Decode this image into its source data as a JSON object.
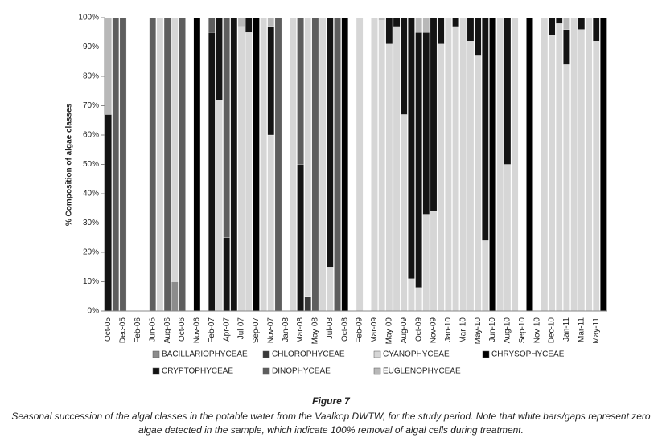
{
  "chart_data": {
    "type": "stacked_bar",
    "ylabel": "% Composition of algae classes",
    "ylim": [
      0,
      100
    ],
    "yticks": [
      {
        "value": 0,
        "label": "0%"
      },
      {
        "value": 10,
        "label": "10%"
      },
      {
        "value": 20,
        "label": "20%"
      },
      {
        "value": 30,
        "label": "30%"
      },
      {
        "value": 40,
        "label": "40%"
      },
      {
        "value": 50,
        "label": "50%"
      },
      {
        "value": 60,
        "label": "60%"
      },
      {
        "value": 70,
        "label": "70%"
      },
      {
        "value": 80,
        "label": "80%"
      },
      {
        "value": 90,
        "label": "90%"
      },
      {
        "value": 100,
        "label": "100%"
      }
    ],
    "categories": [
      "Oct-05",
      null,
      "Dec-05",
      null,
      "Feb-06",
      null,
      "Jun-06",
      null,
      "Aug-06",
      null,
      "Oct-06",
      null,
      "Nov-06",
      null,
      "Feb-07",
      null,
      "Apr-07",
      null,
      "Jul-07",
      null,
      "Sep-07",
      null,
      "Nov-07",
      null,
      "Jan-08",
      null,
      "Mar-08",
      null,
      "May-08",
      null,
      "Jul-08",
      null,
      "Oct-08",
      null,
      "Feb-09",
      null,
      "Mar-09",
      null,
      "May-09",
      null,
      "Aug-09",
      null,
      "Oct-09",
      null,
      "Nov-09",
      null,
      "Jan-10",
      null,
      "Mar-10",
      null,
      "May-10",
      null,
      "Jun-10",
      null,
      "Aug-10",
      null,
      "Sep-10",
      null,
      "Nov-10",
      null,
      "Dec-10",
      null,
      "Jan-11",
      null,
      "Mar-11",
      null,
      "May-11",
      null
    ],
    "series": [
      {
        "name": "BACILLARIOPHYCEAE",
        "color": "#8c8c8c",
        "values": [
          0,
          0,
          0,
          0,
          0,
          0,
          0,
          0,
          0,
          10,
          0,
          0,
          0,
          0,
          0,
          0,
          0,
          0,
          0,
          0,
          0,
          0,
          0,
          0,
          0,
          0,
          0,
          0,
          0,
          0,
          0,
          0,
          0,
          0,
          0,
          0,
          0,
          0,
          0,
          0,
          0,
          0,
          0,
          0,
          0,
          0,
          0,
          0,
          0,
          0,
          0,
          0,
          0,
          0,
          0,
          0,
          0,
          0,
          0,
          0,
          0,
          0,
          0,
          0,
          0,
          0,
          0,
          0
        ]
      },
      {
        "name": "CHLOROPHYCEAE",
        "color": "#3a3a3a",
        "values": [
          0,
          0,
          0,
          0,
          0,
          0,
          0,
          0,
          0,
          0,
          0,
          0,
          0,
          0,
          0,
          0,
          0,
          0,
          0,
          0,
          0,
          0,
          0,
          0,
          0,
          0,
          0,
          5,
          0,
          0,
          0,
          0,
          0,
          0,
          0,
          0,
          0,
          0,
          0,
          0,
          0,
          0,
          0,
          0,
          0,
          0,
          0,
          0,
          0,
          0,
          0,
          0,
          0,
          0,
          0,
          0,
          0,
          0,
          0,
          0,
          0,
          0,
          0,
          0,
          0,
          0,
          0,
          0
        ]
      },
      {
        "name": "CYANOPHYCEAE",
        "color": "#d6d6d6",
        "values": [
          0,
          0,
          0,
          0,
          0,
          0,
          0,
          100,
          0,
          90,
          0,
          0,
          0,
          0,
          0,
          72,
          0,
          0,
          97,
          95,
          0,
          100,
          60,
          0,
          0,
          100,
          0,
          95,
          0,
          100,
          15,
          0,
          0,
          0,
          100,
          0,
          100,
          99,
          91,
          97,
          67,
          11,
          8,
          33,
          34,
          91,
          100,
          97,
          100,
          92,
          87,
          24,
          0,
          100,
          50,
          100,
          0,
          0,
          0,
          100,
          94,
          98,
          84,
          100,
          96,
          100,
          92,
          0
        ]
      },
      {
        "name": "CHRYSOPHYCEAE",
        "color": "#000000",
        "values": [
          0,
          0,
          0,
          0,
          0,
          0,
          0,
          0,
          0,
          0,
          0,
          0,
          100,
          0,
          0,
          0,
          0,
          0,
          0,
          0,
          100,
          0,
          0,
          0,
          0,
          0,
          0,
          0,
          0,
          0,
          0,
          0,
          100,
          0,
          0,
          0,
          0,
          0,
          0,
          0,
          0,
          0,
          0,
          0,
          0,
          0,
          0,
          0,
          0,
          0,
          0,
          0,
          100,
          0,
          0,
          0,
          0,
          100,
          0,
          0,
          0,
          0,
          0,
          0,
          0,
          0,
          0,
          100
        ]
      },
      {
        "name": "CRYPTOPHYCEAE",
        "color": "#141414",
        "values": [
          67,
          0,
          0,
          0,
          0,
          0,
          0,
          0,
          0,
          0,
          0,
          0,
          0,
          0,
          95,
          28,
          25,
          100,
          0,
          5,
          0,
          0,
          37,
          0,
          0,
          0,
          50,
          0,
          0,
          0,
          85,
          0,
          0,
          0,
          0,
          0,
          0,
          0,
          9,
          3,
          33,
          89,
          87,
          62,
          66,
          9,
          0,
          3,
          0,
          8,
          13,
          76,
          0,
          0,
          50,
          0,
          0,
          0,
          0,
          0,
          6,
          2,
          12,
          0,
          4,
          0,
          8,
          0
        ]
      },
      {
        "name": "DINOPHYCEAE",
        "color": "#5e5e5e",
        "values": [
          0,
          100,
          100,
          0,
          0,
          0,
          100,
          0,
          100,
          0,
          100,
          0,
          0,
          0,
          5,
          0,
          75,
          0,
          0,
          0,
          0,
          0,
          0,
          100,
          0,
          0,
          50,
          0,
          100,
          0,
          0,
          100,
          0,
          0,
          0,
          0,
          0,
          0,
          0,
          0,
          0,
          0,
          0,
          0,
          0,
          0,
          0,
          0,
          0,
          0,
          0,
          0,
          0,
          0,
          0,
          0,
          0,
          0,
          0,
          0,
          0,
          0,
          0,
          0,
          0,
          0,
          0,
          0
        ]
      },
      {
        "name": "EUGLENOPHYCEAE",
        "color": "#b8b8b8",
        "values": [
          33,
          0,
          0,
          0,
          0,
          0,
          0,
          0,
          0,
          0,
          0,
          0,
          0,
          0,
          0,
          0,
          0,
          0,
          3,
          0,
          0,
          0,
          3,
          0,
          0,
          0,
          0,
          0,
          0,
          0,
          0,
          0,
          0,
          0,
          0,
          0,
          0,
          1,
          0,
          0,
          0,
          0,
          5,
          5,
          0,
          0,
          0,
          0,
          0,
          0,
          0,
          0,
          0,
          0,
          0,
          0,
          0,
          0,
          0,
          0,
          0,
          0,
          4,
          0,
          0,
          0,
          0,
          0
        ]
      }
    ]
  },
  "figure": {
    "title": "Figure 7",
    "caption": [
      "Seasonal succession of the algal classes in the potable water from the Vaalkop DWTW, for the study period. Note that white bars/gaps represent zero",
      "algae detected in the sample, which indicate 100% removal of algal cells during treatment."
    ]
  }
}
